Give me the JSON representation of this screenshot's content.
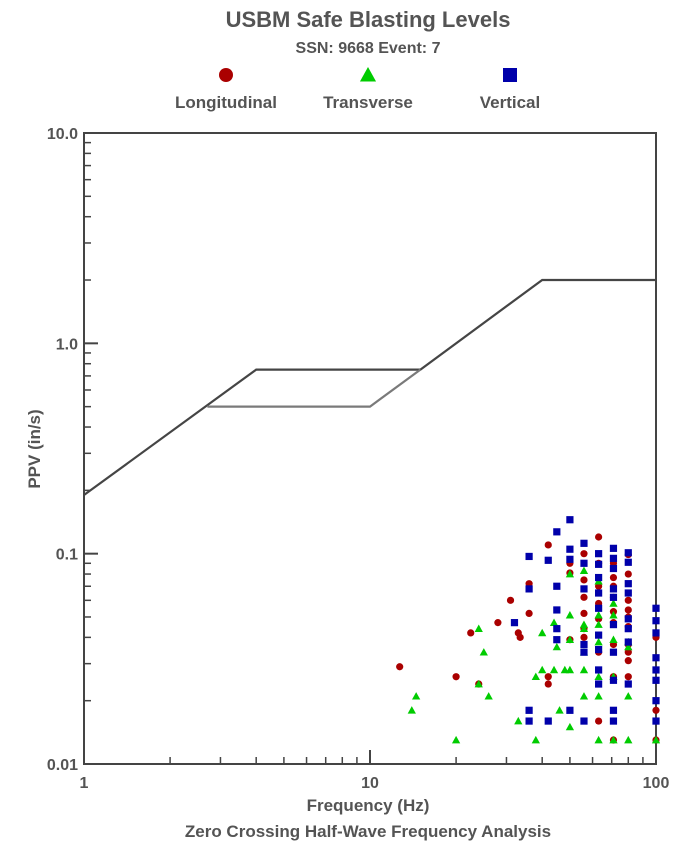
{
  "chart_data": {
    "type": "scatter",
    "title": "USBM Safe Blasting Levels",
    "subtitle": "SSN: 9668 Event: 7",
    "xlabel": "Frequency (Hz)",
    "xlabel2": "Zero Crossing Half-Wave Frequency Analysis",
    "ylabel": "PPV (in/s)",
    "xscale": "log",
    "yscale": "log",
    "xlim": [
      1,
      100
    ],
    "ylim": [
      0.01,
      10
    ],
    "grid": false,
    "legend_position": "top",
    "x_ticks": [
      {
        "value": 1,
        "label": "1"
      },
      {
        "value": 10,
        "label": "10"
      },
      {
        "value": 100,
        "label": "100"
      }
    ],
    "y_ticks": [
      {
        "value": 0.01,
        "label": "0.01"
      },
      {
        "value": 0.1,
        "label": "0.1"
      },
      {
        "value": 1,
        "label": "1.0"
      },
      {
        "value": 10,
        "label": "10.0"
      }
    ],
    "limit_lines": [
      {
        "name": "upper",
        "color": "#454545",
        "points": [
          [
            1,
            0.19
          ],
          [
            4,
            0.75
          ],
          [
            15,
            0.75
          ],
          [
            40,
            2.0
          ],
          [
            100,
            2.0
          ]
        ]
      },
      {
        "name": "lower",
        "color": "#7a7a7a",
        "points": [
          [
            2.7,
            0.5
          ],
          [
            10,
            0.5
          ],
          [
            15,
            0.75
          ]
        ]
      }
    ],
    "series": [
      {
        "name": "Longitudinal",
        "marker": "circle",
        "color": "#aa0000",
        "points": [
          [
            12.7,
            0.029
          ],
          [
            20,
            0.026
          ],
          [
            22.5,
            0.042
          ],
          [
            24,
            0.024
          ],
          [
            28,
            0.047
          ],
          [
            31,
            0.06
          ],
          [
            33,
            0.042
          ],
          [
            33.5,
            0.04
          ],
          [
            36,
            0.072
          ],
          [
            36,
            0.052
          ],
          [
            42,
            0.11
          ],
          [
            42,
            0.026
          ],
          [
            42,
            0.024
          ],
          [
            50,
            0.039
          ],
          [
            50,
            0.081
          ],
          [
            50,
            0.09
          ],
          [
            56,
            0.1
          ],
          [
            56,
            0.075
          ],
          [
            56,
            0.062
          ],
          [
            56,
            0.052
          ],
          [
            56,
            0.044
          ],
          [
            56,
            0.04
          ],
          [
            63,
            0.12
          ],
          [
            63,
            0.09
          ],
          [
            63,
            0.07
          ],
          [
            63,
            0.058
          ],
          [
            63,
            0.049
          ],
          [
            63,
            0.016
          ],
          [
            63,
            0.034
          ],
          [
            71,
            0.09
          ],
          [
            71,
            0.077
          ],
          [
            71,
            0.07
          ],
          [
            71,
            0.062
          ],
          [
            71,
            0.053
          ],
          [
            71,
            0.047
          ],
          [
            71,
            0.037
          ],
          [
            71,
            0.026
          ],
          [
            71,
            0.013
          ],
          [
            80,
            0.08
          ],
          [
            80,
            0.06
          ],
          [
            80,
            0.054
          ],
          [
            80,
            0.05
          ],
          [
            80,
            0.045
          ],
          [
            80,
            0.037
          ],
          [
            80,
            0.034
          ],
          [
            80,
            0.031
          ],
          [
            80,
            0.026
          ],
          [
            80,
            0.099
          ],
          [
            100,
            0.04
          ],
          [
            100,
            0.018
          ],
          [
            100,
            0.013
          ]
        ]
      },
      {
        "name": "Transverse",
        "marker": "triangle",
        "color": "#00cc00",
        "points": [
          [
            14,
            0.018
          ],
          [
            14.5,
            0.021
          ],
          [
            20,
            0.013
          ],
          [
            24,
            0.044
          ],
          [
            24,
            0.024
          ],
          [
            25,
            0.034
          ],
          [
            26,
            0.021
          ],
          [
            33,
            0.016
          ],
          [
            38,
            0.013
          ],
          [
            38,
            0.026
          ],
          [
            40,
            0.028
          ],
          [
            40,
            0.042
          ],
          [
            44,
            0.047
          ],
          [
            44,
            0.028
          ],
          [
            45,
            0.036
          ],
          [
            46,
            0.018
          ],
          [
            48,
            0.028
          ],
          [
            50,
            0.08
          ],
          [
            50,
            0.051
          ],
          [
            50,
            0.039
          ],
          [
            50,
            0.028
          ],
          [
            50,
            0.015
          ],
          [
            56,
            0.083
          ],
          [
            56,
            0.046
          ],
          [
            56,
            0.044
          ],
          [
            56,
            0.034
          ],
          [
            56,
            0.028
          ],
          [
            56,
            0.021
          ],
          [
            63,
            0.074
          ],
          [
            63,
            0.051
          ],
          [
            63,
            0.046
          ],
          [
            63,
            0.038
          ],
          [
            63,
            0.026
          ],
          [
            63,
            0.021
          ],
          [
            63,
            0.013
          ],
          [
            71,
            0.058
          ],
          [
            71,
            0.051
          ],
          [
            71,
            0.039
          ],
          [
            71,
            0.026
          ],
          [
            71,
            0.013
          ],
          [
            80,
            0.038
          ],
          [
            80,
            0.036
          ],
          [
            80,
            0.021
          ],
          [
            80,
            0.013
          ],
          [
            100,
            0.013
          ]
        ]
      },
      {
        "name": "Vertical",
        "marker": "square",
        "color": "#0000aa",
        "points": [
          [
            32,
            0.047
          ],
          [
            36,
            0.097
          ],
          [
            36,
            0.068
          ],
          [
            36,
            0.018
          ],
          [
            36,
            0.016
          ],
          [
            42,
            0.093
          ],
          [
            42,
            0.016
          ],
          [
            45,
            0.127
          ],
          [
            45,
            0.07
          ],
          [
            45,
            0.054
          ],
          [
            45,
            0.044
          ],
          [
            45,
            0.039
          ],
          [
            50,
            0.145
          ],
          [
            50,
            0.105
          ],
          [
            50,
            0.094
          ],
          [
            50,
            0.018
          ],
          [
            56,
            0.112
          ],
          [
            56,
            0.09
          ],
          [
            56,
            0.068
          ],
          [
            56,
            0.037
          ],
          [
            56,
            0.034
          ],
          [
            56,
            0.016
          ],
          [
            63,
            0.1
          ],
          [
            63,
            0.089
          ],
          [
            63,
            0.077
          ],
          [
            63,
            0.065
          ],
          [
            63,
            0.055
          ],
          [
            63,
            0.041
          ],
          [
            63,
            0.035
          ],
          [
            63,
            0.028
          ],
          [
            63,
            0.024
          ],
          [
            71,
            0.106
          ],
          [
            71,
            0.095
          ],
          [
            71,
            0.085
          ],
          [
            71,
            0.068
          ],
          [
            71,
            0.062
          ],
          [
            71,
            0.046
          ],
          [
            71,
            0.034
          ],
          [
            71,
            0.025
          ],
          [
            71,
            0.018
          ],
          [
            71,
            0.016
          ],
          [
            80,
            0.101
          ],
          [
            80,
            0.091
          ],
          [
            80,
            0.072
          ],
          [
            80,
            0.065
          ],
          [
            80,
            0.049
          ],
          [
            80,
            0.044
          ],
          [
            80,
            0.038
          ],
          [
            80,
            0.024
          ],
          [
            100,
            0.055
          ],
          [
            100,
            0.048
          ],
          [
            100,
            0.042
          ],
          [
            100,
            0.032
          ],
          [
            100,
            0.028
          ],
          [
            100,
            0.025
          ],
          [
            100,
            0.02
          ],
          [
            100,
            0.016
          ]
        ]
      }
    ]
  }
}
